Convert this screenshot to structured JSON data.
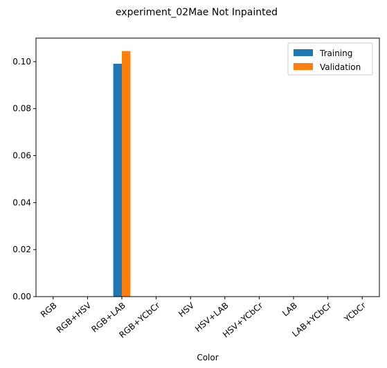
{
  "chart_data": {
    "type": "bar",
    "title": "experiment_02Mae Not Inpainted",
    "xlabel": "Color",
    "ylabel": "",
    "categories": [
      "RGB",
      "RGB+HSV",
      "RGB+LAB",
      "RGB+YCbCr",
      "HSV",
      "HSV+LAB",
      "HSV+YCbCr",
      "LAB",
      "LAB+YCbCr",
      "YCbCr"
    ],
    "series": [
      {
        "name": "Training",
        "color": "#1f77b4",
        "values": [
          0,
          0,
          0.0991,
          0,
          0,
          0,
          0,
          0,
          0,
          0
        ]
      },
      {
        "name": "Validation",
        "color": "#ff7f0e",
        "values": [
          0,
          0,
          0.1045,
          0,
          0,
          0,
          0,
          0,
          0,
          0
        ]
      }
    ],
    "ylim": [
      0,
      0.11
    ],
    "yticks": [
      "0.00",
      "0.02",
      "0.04",
      "0.06",
      "0.08",
      "0.10"
    ],
    "grid": false,
    "legend_position": "top-right"
  }
}
